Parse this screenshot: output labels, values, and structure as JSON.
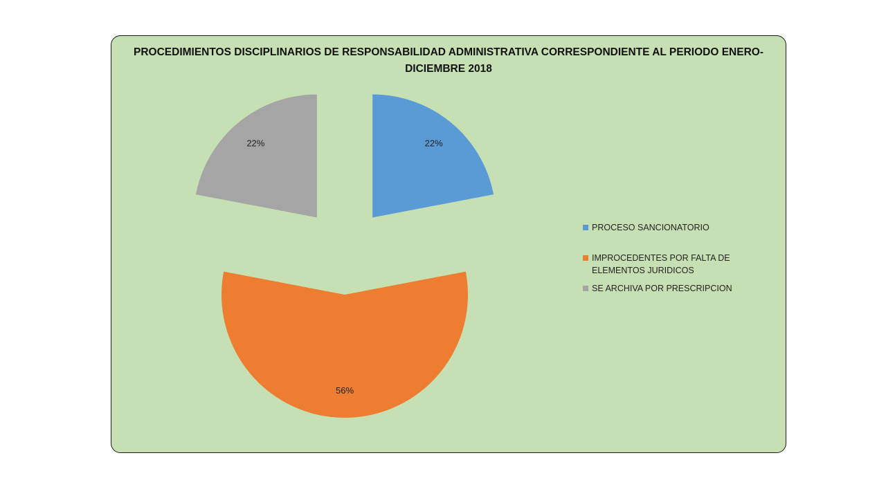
{
  "chart_data": {
    "type": "pie",
    "title": "PROCEDIMIENTOS DISCIPLINARIOS DE RESPONSABILIDAD ADMINISTRATIVA CORRESPONDIENTE AL PERIODO ENERO-DICIEMBRE 2018",
    "slices": [
      {
        "label": "PROCESO SANCIONATORIO",
        "value": 22,
        "display": "22%",
        "color": "#5b9bd5"
      },
      {
        "label": "IMPROCEDENTES POR FALTA DE ELEMENTOS JURIDICOS",
        "value": 56,
        "display": "56%",
        "color": "#ed7d31"
      },
      {
        "label": "SE ARCHIVA POR PRESCRIPCION",
        "value": 22,
        "display": "22%",
        "color": "#a5a5a5"
      }
    ],
    "legend_position": "right",
    "exploded": true
  }
}
